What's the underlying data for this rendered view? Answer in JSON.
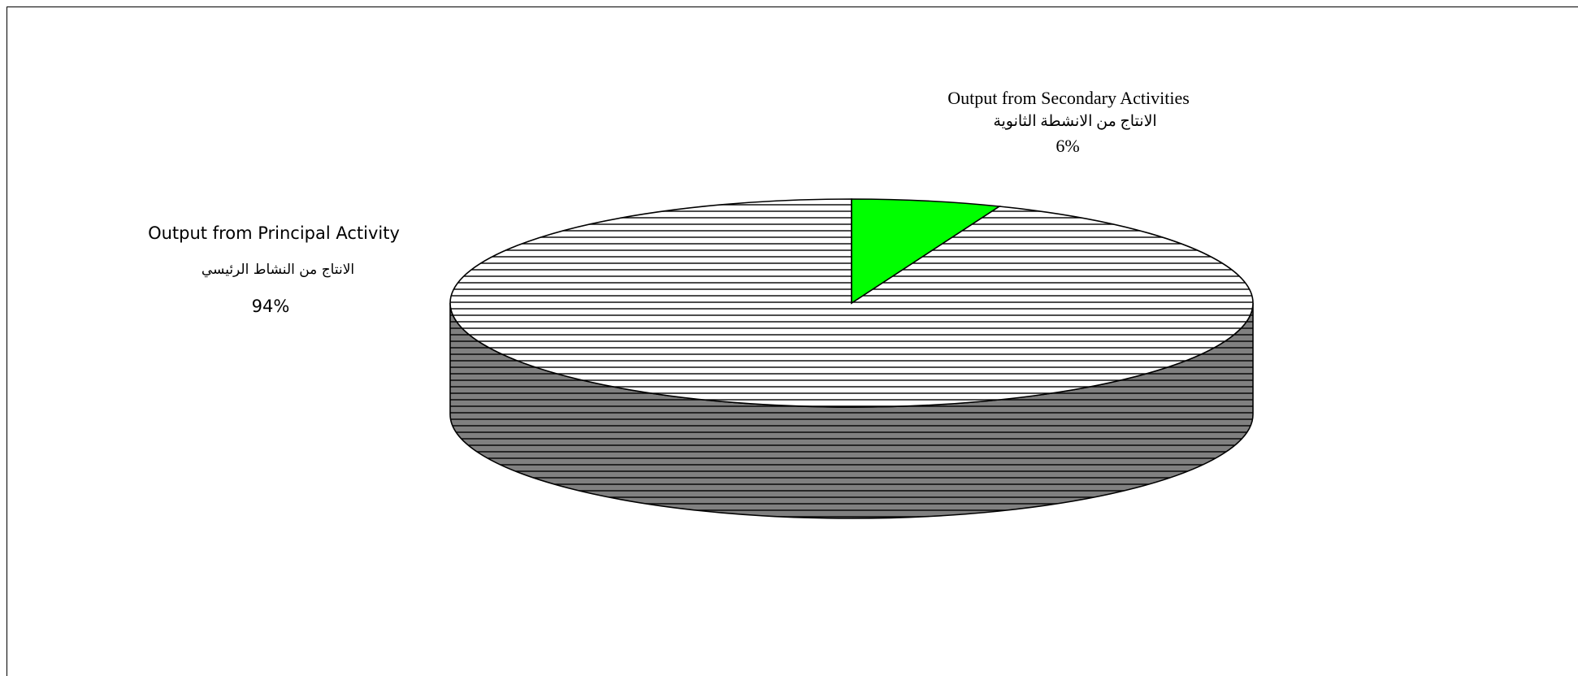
{
  "chart_data": {
    "type": "pie",
    "style": "3d",
    "slices": [
      {
        "name_en": "Output from Principal Activity",
        "name_ar": "الانتاج  من النشاط الرئيسي",
        "percent_label": "94%",
        "value": 94,
        "fill": "hatched-horizontal"
      },
      {
        "name_en": "Output from Secondary Activities",
        "name_ar": "الانتاج من الانشطة الثانوية",
        "percent_label": "6%",
        "value": 6,
        "fill": "#00ff00"
      }
    ],
    "colors": {
      "principal_top": "#ffffff",
      "principal_side": "#808080",
      "secondary": "#00ff00",
      "hatch": "#000000"
    },
    "legend": "none",
    "grid": false
  }
}
